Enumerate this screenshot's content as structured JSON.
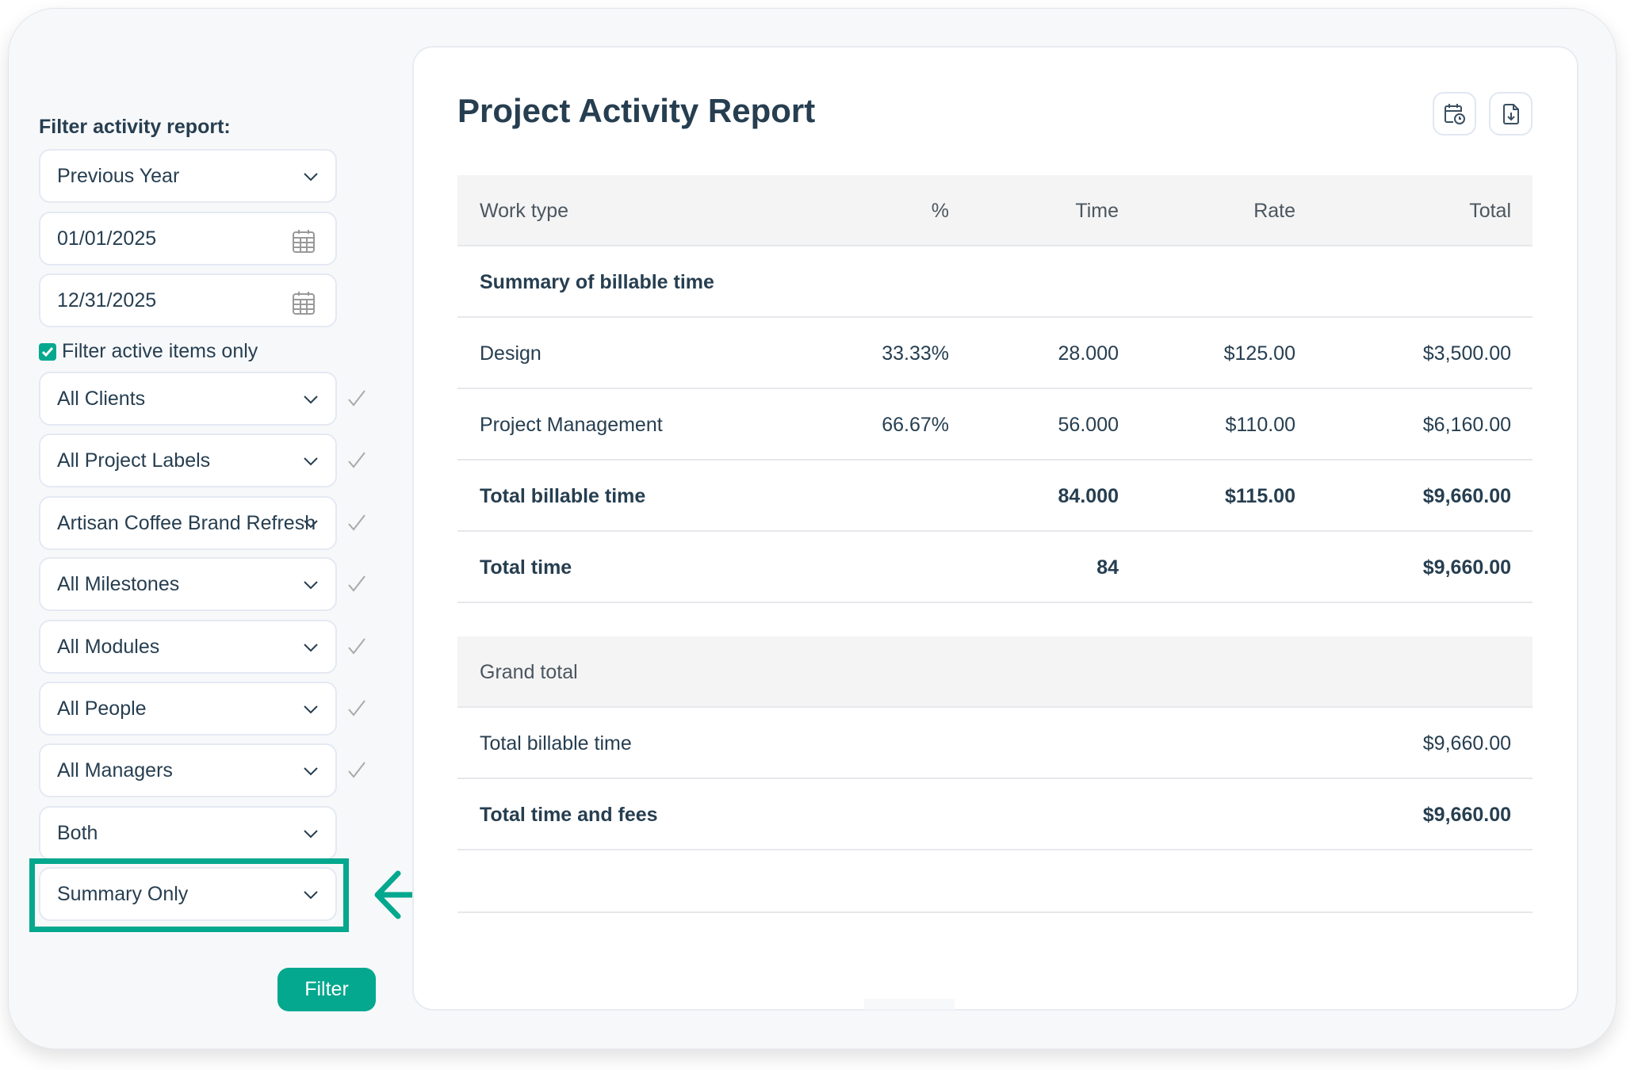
{
  "filters": {
    "heading": "Filter activity report:",
    "period": "Previous Year",
    "start_date": "01/01/2025",
    "end_date": "12/31/2025",
    "active_only_label": "Filter active items only",
    "active_only_checked": true,
    "clients": "All Clients",
    "project_labels": "All Project Labels",
    "project": "Artisan Coffee Brand Refresh",
    "milestones": "All Milestones",
    "modules": "All Modules",
    "people": "All People",
    "managers": "All Managers",
    "billable": "Both",
    "detail": "Summary Only",
    "filter_button": "Filter"
  },
  "accent_color": "#03a88e",
  "report": {
    "title": "Project Activity Report",
    "icons": [
      "calendar-clock-icon",
      "file-download-icon"
    ],
    "columns": [
      "Work type",
      "%",
      "Time",
      "Rate",
      "Total"
    ],
    "section_title": "Summary of billable time",
    "rows": [
      {
        "type": "Design",
        "pct": "33.33%",
        "time": "28.000",
        "rate": "$125.00",
        "total": "$3,500.00"
      },
      {
        "type": "Project Management",
        "pct": "66.67%",
        "time": "56.000",
        "rate": "$110.00",
        "total": "$6,160.00"
      }
    ],
    "total_billable": {
      "label": "Total billable time",
      "time": "84.000",
      "rate": "$115.00",
      "total": "$9,660.00"
    },
    "total_time": {
      "label": "Total time",
      "time": "84",
      "total": "$9,660.00"
    },
    "grand_total": {
      "label": "Grand total",
      "billable_label": "Total billable time",
      "billable_total": "$9,660.00",
      "fees_label": "Total time and fees",
      "fees_total": "$9,660.00"
    }
  }
}
